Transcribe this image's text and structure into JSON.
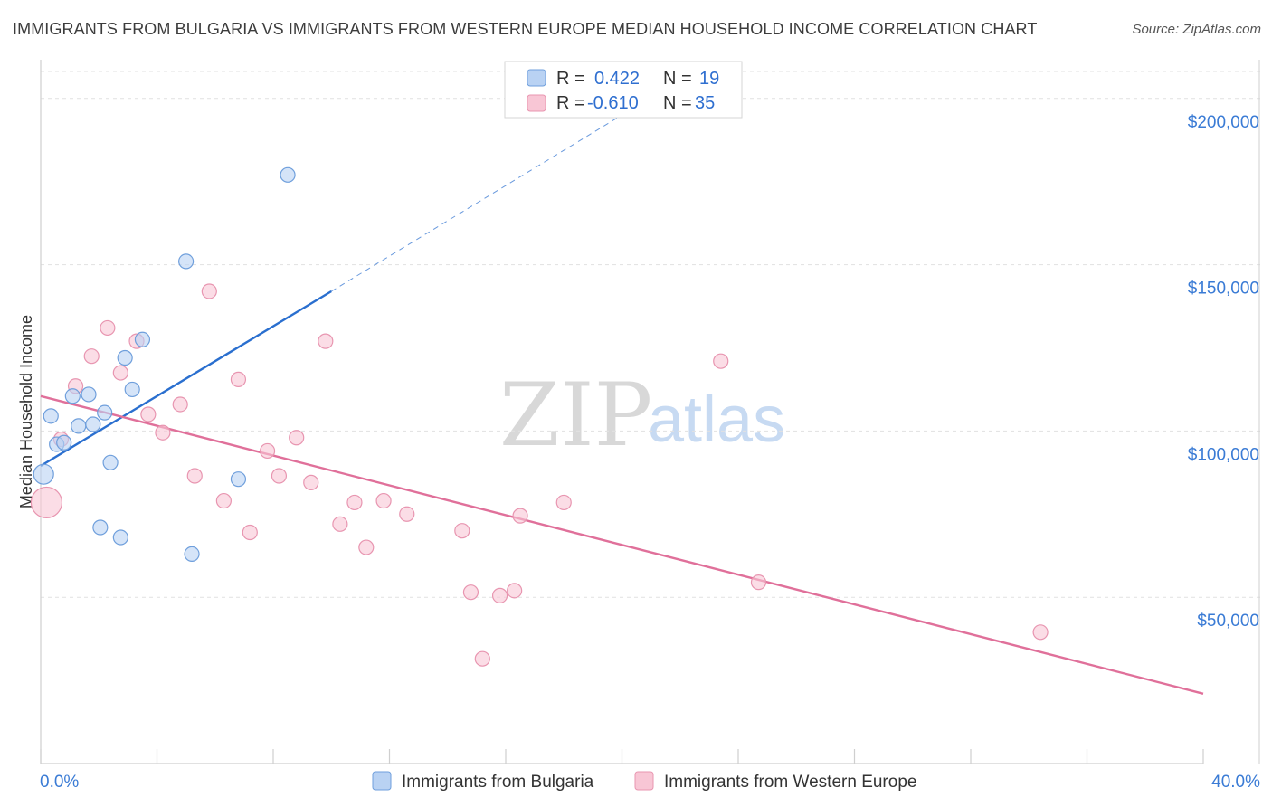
{
  "title": "IMMIGRANTS FROM BULGARIA VS IMMIGRANTS FROM WESTERN EUROPE MEDIAN HOUSEHOLD INCOME CORRELATION CHART",
  "source": "Source: ZipAtlas.com",
  "watermark": {
    "zip": "ZIP",
    "atlas": "atlas"
  },
  "colors": {
    "blue_fill": "#b9d2f3",
    "blue_stroke": "#6f9fdc",
    "blue_line": "#2a6fcf",
    "pink_fill": "#f8c6d5",
    "pink_stroke": "#e895b0",
    "pink_line": "#e0709a",
    "grid": "#e1e1e1",
    "axis": "#cfcfcf",
    "tick_text": "#3a7bd5"
  },
  "legend": {
    "rows": [
      {
        "r_label": "R =",
        "r_value": "0.422",
        "n_label": "N =",
        "n_value": "19",
        "series": "bulgaria"
      },
      {
        "r_label": "R =",
        "r_value": "-0.610",
        "n_label": "N =",
        "n_value": "35",
        "series": "western_europe"
      }
    ]
  },
  "chart_data": {
    "type": "scatter",
    "title": "IMMIGRANTS FROM BULGARIA VS IMMIGRANTS FROM WESTERN EUROPE MEDIAN HOUSEHOLD INCOME CORRELATION CHART",
    "xlabel": "",
    "ylabel": "Median Household Income",
    "xlim": [
      0,
      40
    ],
    "ylim": [
      0,
      210000
    ],
    "x_tick_labels": [
      {
        "value": 0,
        "label": "0.0%"
      },
      {
        "value": 40,
        "label": "40.0%"
      }
    ],
    "y_tick_labels": [
      {
        "value": 50000,
        "label": "$50,000"
      },
      {
        "value": 100000,
        "label": "$100,000"
      },
      {
        "value": 150000,
        "label": "$150,000"
      },
      {
        "value": 200000,
        "label": "$200,000"
      }
    ],
    "series": [
      {
        "name": "Immigrants from Bulgaria",
        "key": "bulgaria",
        "R": 0.422,
        "N": 19,
        "trend": {
          "x0": 0,
          "y0": 89500,
          "x1": 10.0,
          "y1": 142000,
          "dashed_to_x": 20.0,
          "dashed_to_y": 195000
        },
        "points": [
          {
            "x": 0.1,
            "y": 87000,
            "big": true
          },
          {
            "x": 0.35,
            "y": 104500
          },
          {
            "x": 0.55,
            "y": 96000
          },
          {
            "x": 0.8,
            "y": 96500
          },
          {
            "x": 1.1,
            "y": 110500
          },
          {
            "x": 1.3,
            "y": 101500
          },
          {
            "x": 1.65,
            "y": 111000
          },
          {
            "x": 1.8,
            "y": 102000
          },
          {
            "x": 2.2,
            "y": 105500
          },
          {
            "x": 2.4,
            "y": 90500
          },
          {
            "x": 2.05,
            "y": 71000
          },
          {
            "x": 2.75,
            "y": 68000
          },
          {
            "x": 2.9,
            "y": 122000
          },
          {
            "x": 3.15,
            "y": 112500
          },
          {
            "x": 3.5,
            "y": 127500
          },
          {
            "x": 5.0,
            "y": 151000
          },
          {
            "x": 5.2,
            "y": 63000
          },
          {
            "x": 6.8,
            "y": 85500
          },
          {
            "x": 8.5,
            "y": 177000
          }
        ]
      },
      {
        "name": "Immigrants from Western Europe",
        "key": "western_europe",
        "R": -0.61,
        "N": 35,
        "trend": {
          "x0": 0,
          "y0": 110500,
          "x1": 40.0,
          "y1": 21000
        },
        "points": [
          {
            "x": 0.2,
            "y": 78500,
            "big": true
          },
          {
            "x": 0.7,
            "y": 97500
          },
          {
            "x": 1.2,
            "y": 113500
          },
          {
            "x": 1.75,
            "y": 122500
          },
          {
            "x": 2.3,
            "y": 131000
          },
          {
            "x": 2.75,
            "y": 117500
          },
          {
            "x": 3.3,
            "y": 127000
          },
          {
            "x": 3.7,
            "y": 105000
          },
          {
            "x": 4.2,
            "y": 99500
          },
          {
            "x": 4.8,
            "y": 108000
          },
          {
            "x": 5.3,
            "y": 86500
          },
          {
            "x": 5.8,
            "y": 142000
          },
          {
            "x": 6.3,
            "y": 79000
          },
          {
            "x": 6.8,
            "y": 115500
          },
          {
            "x": 7.2,
            "y": 69500
          },
          {
            "x": 7.8,
            "y": 94000
          },
          {
            "x": 8.2,
            "y": 86500
          },
          {
            "x": 8.8,
            "y": 98000
          },
          {
            "x": 9.3,
            "y": 84500
          },
          {
            "x": 9.8,
            "y": 127000
          },
          {
            "x": 10.3,
            "y": 72000
          },
          {
            "x": 10.8,
            "y": 78500
          },
          {
            "x": 11.2,
            "y": 65000
          },
          {
            "x": 11.8,
            "y": 79000
          },
          {
            "x": 12.6,
            "y": 75000
          },
          {
            "x": 14.5,
            "y": 70000
          },
          {
            "x": 14.8,
            "y": 51500
          },
          {
            "x": 15.2,
            "y": 31500
          },
          {
            "x": 15.8,
            "y": 50500
          },
          {
            "x": 16.3,
            "y": 52000
          },
          {
            "x": 16.5,
            "y": 74500
          },
          {
            "x": 18.0,
            "y": 78500
          },
          {
            "x": 23.4,
            "y": 121000
          },
          {
            "x": 24.7,
            "y": 54500
          },
          {
            "x": 34.4,
            "y": 39500
          }
        ]
      }
    ],
    "legend_position": "bottom-center",
    "grid": true
  }
}
